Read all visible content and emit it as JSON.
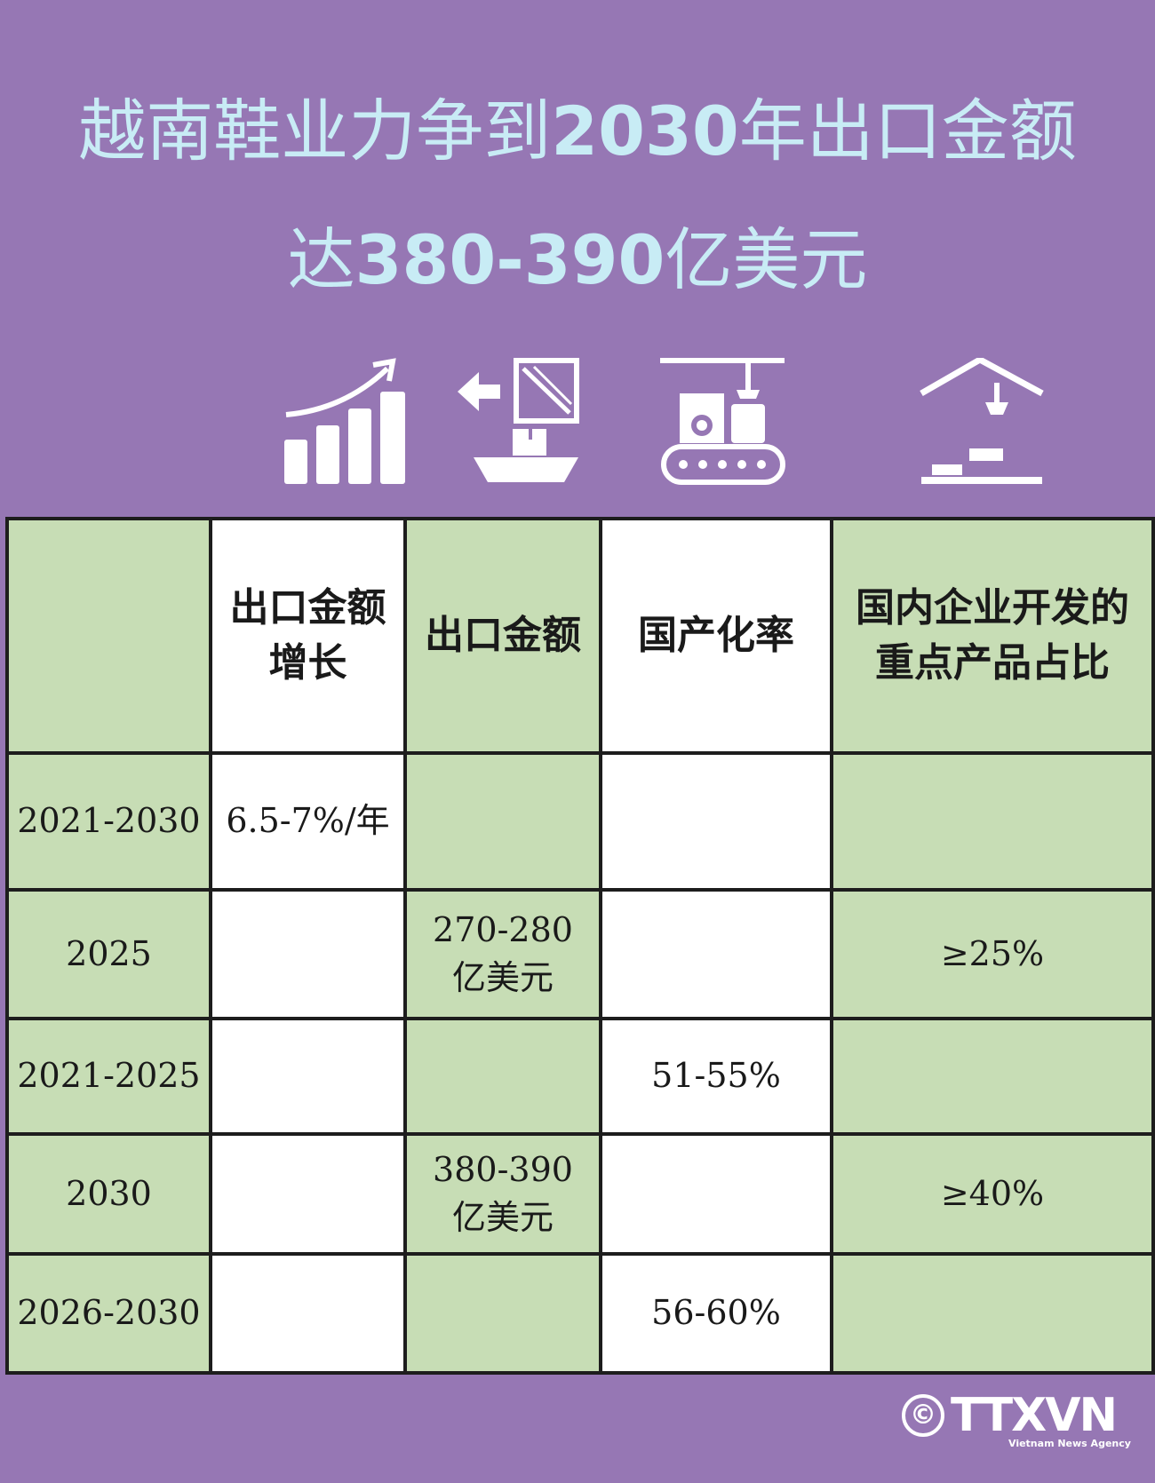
{
  "title": {
    "line1_a": "越南鞋业力争到",
    "line1_b": "2030",
    "line1_c": "年出口金额",
    "line2_a": "达",
    "line2_b": "380-390",
    "line2_c": "亿美元"
  },
  "icons": [
    "growth-chart-icon",
    "export-ship-icon",
    "factory-conveyor-icon",
    "crane-icon"
  ],
  "table": {
    "headers": [
      "",
      "出口金额增长",
      "出口金额",
      "国产化率",
      "国内企业开发的重点产品占比"
    ],
    "header_lines": {
      "growth_l1": "出口金额",
      "growth_l2": "增长",
      "export": "出口金额",
      "localization": "国产化率",
      "share_l1": "国内企业开发的",
      "share_l2": "重点产品占比"
    },
    "rows": [
      {
        "period": "2021-2030",
        "growth": "6.5-7%/年",
        "export_l1": "",
        "export_l2": "",
        "localization": "",
        "share": ""
      },
      {
        "period": "2025",
        "growth": "",
        "export_l1": "270-280",
        "export_l2": "亿美元",
        "localization": "",
        "share": "≥25%"
      },
      {
        "period": "2021-2025",
        "growth": "",
        "export_l1": "",
        "export_l2": "",
        "localization": "51-55%",
        "share": ""
      },
      {
        "period": "2030",
        "growth": "",
        "export_l1": "380-390",
        "export_l2": "亿美元",
        "localization": "",
        "share": "≥40%"
      },
      {
        "period": "2026-2030",
        "growth": "",
        "export_l1": "",
        "export_l2": "",
        "localization": "56-60%",
        "share": ""
      }
    ]
  },
  "footer": {
    "copyright": "©",
    "logo": "TTXVN",
    "logo_sub": "Vietnam News Agency"
  },
  "colors": {
    "background": "#9677b4",
    "title": "#c8ecf5",
    "cell_green": "#c7ddb5",
    "cell_white": "#ffffff"
  }
}
